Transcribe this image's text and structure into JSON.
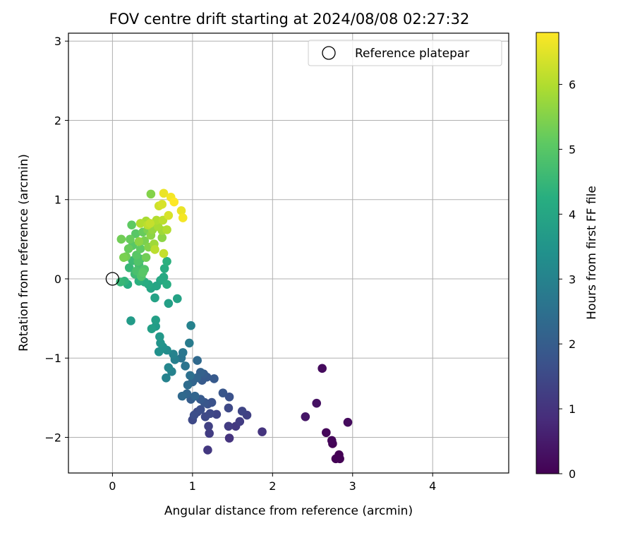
{
  "chart_data": {
    "type": "scatter",
    "title": "FOV centre drift starting at 2024/08/08 02:27:32",
    "xlabel": "Angular distance from reference (arcmin)",
    "ylabel": "Rotation from reference (arcmin)",
    "xlim": [
      -0.55,
      4.95
    ],
    "ylim": [
      -2.45,
      3.1
    ],
    "xticks": [
      0,
      1,
      2,
      3,
      4
    ],
    "yticks": [
      -2,
      -1,
      0,
      1,
      2,
      3
    ],
    "grid": true,
    "legend": {
      "position": "top-right",
      "label": "Reference platepar"
    },
    "reference_point": {
      "x": 0,
      "y": 0
    },
    "colorbar": {
      "label": "Hours from first FF file",
      "range": [
        0,
        6.8
      ],
      "ticks": [
        0,
        1,
        2,
        3,
        4,
        5,
        6
      ],
      "colormap": "viridis",
      "colors": [
        "#440154",
        "#472d7b",
        "#3b528b",
        "#2c728e",
        "#21918c",
        "#28ae80",
        "#5ec962",
        "#addc30",
        "#fde725"
      ]
    },
    "points": [
      {
        "x": 2.62,
        "y": -1.13,
        "h": 0.2
      },
      {
        "x": 2.55,
        "y": -1.57,
        "h": 0.3
      },
      {
        "x": 2.41,
        "y": -1.74,
        "h": 0.4
      },
      {
        "x": 2.67,
        "y": -1.94,
        "h": 0.1
      },
      {
        "x": 2.94,
        "y": -1.81,
        "h": 0.2
      },
      {
        "x": 2.74,
        "y": -2.04,
        "h": 0.1
      },
      {
        "x": 2.75,
        "y": -2.08,
        "h": 0.05
      },
      {
        "x": 2.79,
        "y": -2.27,
        "h": 0.02
      },
      {
        "x": 2.83,
        "y": -2.22,
        "h": 0.0
      },
      {
        "x": 2.84,
        "y": -2.27,
        "h": 0.03
      },
      {
        "x": 1.87,
        "y": -1.93,
        "h": 1.0
      },
      {
        "x": 1.68,
        "y": -1.72,
        "h": 1.3
      },
      {
        "x": 1.62,
        "y": -1.67,
        "h": 1.4
      },
      {
        "x": 1.59,
        "y": -1.8,
        "h": 1.2
      },
      {
        "x": 1.54,
        "y": -1.86,
        "h": 1.1
      },
      {
        "x": 1.45,
        "y": -1.86,
        "h": 1.2
      },
      {
        "x": 1.46,
        "y": -2.01,
        "h": 1.0
      },
      {
        "x": 1.45,
        "y": -1.63,
        "h": 1.5
      },
      {
        "x": 1.46,
        "y": -1.49,
        "h": 1.7
      },
      {
        "x": 1.38,
        "y": -1.44,
        "h": 1.8
      },
      {
        "x": 1.27,
        "y": -1.26,
        "h": 1.9
      },
      {
        "x": 1.3,
        "y": -1.71,
        "h": 1.4
      },
      {
        "x": 1.24,
        "y": -1.56,
        "h": 1.7
      },
      {
        "x": 1.22,
        "y": -1.7,
        "h": 1.5
      },
      {
        "x": 1.2,
        "y": -1.86,
        "h": 1.3
      },
      {
        "x": 1.21,
        "y": -1.95,
        "h": 1.2
      },
      {
        "x": 1.19,
        "y": -2.16,
        "h": 1.1
      },
      {
        "x": 1.16,
        "y": -1.74,
        "h": 1.5
      },
      {
        "x": 1.1,
        "y": -1.65,
        "h": 1.6
      },
      {
        "x": 1.06,
        "y": -1.68,
        "h": 1.5
      },
      {
        "x": 1.02,
        "y": -1.72,
        "h": 1.6
      },
      {
        "x": 1.0,
        "y": -1.78,
        "h": 1.5
      },
      {
        "x": 0.98,
        "y": -1.52,
        "h": 2.0
      },
      {
        "x": 1.03,
        "y": -1.48,
        "h": 2.2
      },
      {
        "x": 1.1,
        "y": -1.52,
        "h": 1.9
      },
      {
        "x": 1.15,
        "y": -1.56,
        "h": 1.8
      },
      {
        "x": 1.19,
        "y": -1.58,
        "h": 1.7
      },
      {
        "x": 1.06,
        "y": -1.03,
        "h": 2.3
      },
      {
        "x": 1.1,
        "y": -1.18,
        "h": 2.1
      },
      {
        "x": 1.14,
        "y": -1.2,
        "h": 2.0
      },
      {
        "x": 1.18,
        "y": -1.24,
        "h": 1.9
      },
      {
        "x": 1.12,
        "y": -1.28,
        "h": 1.9
      },
      {
        "x": 1.05,
        "y": -1.25,
        "h": 2.2
      },
      {
        "x": 1.0,
        "y": -1.3,
        "h": 2.2
      },
      {
        "x": 0.94,
        "y": -1.34,
        "h": 2.4
      },
      {
        "x": 0.97,
        "y": -1.22,
        "h": 2.5
      },
      {
        "x": 0.91,
        "y": -1.1,
        "h": 2.6
      },
      {
        "x": 0.88,
        "y": -0.93,
        "h": 2.7
      },
      {
        "x": 0.86,
        "y": -1.0,
        "h": 2.6
      },
      {
        "x": 0.96,
        "y": -0.81,
        "h": 2.8
      },
      {
        "x": 0.98,
        "y": -0.59,
        "h": 3.0
      },
      {
        "x": 0.87,
        "y": -1.48,
        "h": 2.3
      },
      {
        "x": 0.93,
        "y": -1.45,
        "h": 2.2
      },
      {
        "x": 0.78,
        "y": -1.02,
        "h": 2.9
      },
      {
        "x": 0.76,
        "y": -0.95,
        "h": 3.0
      },
      {
        "x": 0.74,
        "y": -1.17,
        "h": 3.0
      },
      {
        "x": 0.7,
        "y": -1.12,
        "h": 3.1
      },
      {
        "x": 0.68,
        "y": -0.9,
        "h": 3.3
      },
      {
        "x": 0.63,
        "y": -0.86,
        "h": 3.4
      },
      {
        "x": 0.67,
        "y": -1.25,
        "h": 3.0
      },
      {
        "x": 0.6,
        "y": -0.81,
        "h": 3.5
      },
      {
        "x": 0.58,
        "y": -0.92,
        "h": 3.4
      },
      {
        "x": 0.59,
        "y": -0.73,
        "h": 3.6
      },
      {
        "x": 0.54,
        "y": -0.6,
        "h": 3.7
      },
      {
        "x": 0.49,
        "y": -0.63,
        "h": 3.8
      },
      {
        "x": 0.54,
        "y": -0.52,
        "h": 3.8
      },
      {
        "x": 0.23,
        "y": -0.53,
        "h": 3.7
      },
      {
        "x": 0.7,
        "y": -0.31,
        "h": 3.8
      },
      {
        "x": 0.81,
        "y": -0.25,
        "h": 3.9
      },
      {
        "x": 0.53,
        "y": -0.24,
        "h": 3.9
      },
      {
        "x": 0.48,
        "y": -0.12,
        "h": 4.0
      },
      {
        "x": 0.45,
        "y": -0.07,
        "h": 4.1
      },
      {
        "x": 0.55,
        "y": -0.09,
        "h": 4.0
      },
      {
        "x": 0.6,
        "y": -0.02,
        "h": 4.0
      },
      {
        "x": 0.64,
        "y": 0.02,
        "h": 4.1
      },
      {
        "x": 0.68,
        "y": -0.07,
        "h": 4.2
      },
      {
        "x": 0.65,
        "y": 0.13,
        "h": 4.2
      },
      {
        "x": 0.68,
        "y": 0.22,
        "h": 4.3
      },
      {
        "x": 0.62,
        "y": -0.01,
        "h": 4.1
      },
      {
        "x": 0.4,
        "y": -0.04,
        "h": 4.2
      },
      {
        "x": 0.33,
        "y": -0.03,
        "h": 4.3
      },
      {
        "x": 0.19,
        "y": -0.07,
        "h": 4.2
      },
      {
        "x": 0.15,
        "y": -0.03,
        "h": 4.4
      },
      {
        "x": 0.1,
        "y": -0.04,
        "h": 4.5
      },
      {
        "x": 0.21,
        "y": 0.14,
        "h": 4.5
      },
      {
        "x": 0.25,
        "y": 0.23,
        "h": 4.6
      },
      {
        "x": 0.28,
        "y": 0.06,
        "h": 4.6
      },
      {
        "x": 0.3,
        "y": 0.1,
        "h": 4.8
      },
      {
        "x": 0.33,
        "y": 0.18,
        "h": 4.7
      },
      {
        "x": 0.35,
        "y": 0.25,
        "h": 4.8
      },
      {
        "x": 0.38,
        "y": 0.08,
        "h": 5.0
      },
      {
        "x": 0.4,
        "y": 0.12,
        "h": 4.9
      },
      {
        "x": 0.3,
        "y": 0.3,
        "h": 5.0
      },
      {
        "x": 0.35,
        "y": 0.38,
        "h": 5.1
      },
      {
        "x": 0.25,
        "y": 0.42,
        "h": 5.0
      },
      {
        "x": 0.2,
        "y": 0.38,
        "h": 5.2
      },
      {
        "x": 0.17,
        "y": 0.28,
        "h": 5.3
      },
      {
        "x": 0.14,
        "y": 0.27,
        "h": 5.4
      },
      {
        "x": 0.11,
        "y": 0.5,
        "h": 5.3
      },
      {
        "x": 0.22,
        "y": 0.5,
        "h": 5.2
      },
      {
        "x": 0.24,
        "y": 0.68,
        "h": 5.1
      },
      {
        "x": 0.29,
        "y": 0.57,
        "h": 5.0
      },
      {
        "x": 0.32,
        "y": 0.22,
        "h": 4.9
      },
      {
        "x": 0.36,
        "y": 0.03,
        "h": 4.9
      },
      {
        "x": 0.42,
        "y": 0.27,
        "h": 5.3
      },
      {
        "x": 0.45,
        "y": 0.4,
        "h": 5.5
      },
      {
        "x": 0.4,
        "y": 0.48,
        "h": 5.4
      },
      {
        "x": 0.38,
        "y": 0.59,
        "h": 5.2
      },
      {
        "x": 0.44,
        "y": 0.62,
        "h": 5.4
      },
      {
        "x": 0.48,
        "y": 0.55,
        "h": 5.6
      },
      {
        "x": 0.5,
        "y": 0.62,
        "h": 5.7
      },
      {
        "x": 0.52,
        "y": 0.44,
        "h": 5.8
      },
      {
        "x": 0.48,
        "y": 1.07,
        "h": 5.5
      },
      {
        "x": 0.42,
        "y": 0.73,
        "h": 5.9
      },
      {
        "x": 0.44,
        "y": 0.68,
        "h": 6.1
      },
      {
        "x": 0.47,
        "y": 0.7,
        "h": 6.2
      },
      {
        "x": 0.55,
        "y": 0.74,
        "h": 6.0
      },
      {
        "x": 0.57,
        "y": 0.66,
        "h": 5.9
      },
      {
        "x": 0.58,
        "y": 0.92,
        "h": 6.3
      },
      {
        "x": 0.62,
        "y": 0.94,
        "h": 6.4
      },
      {
        "x": 0.63,
        "y": 0.74,
        "h": 6.1
      },
      {
        "x": 0.62,
        "y": 0.61,
        "h": 5.8
      },
      {
        "x": 0.62,
        "y": 0.52,
        "h": 5.6
      },
      {
        "x": 0.64,
        "y": 1.08,
        "h": 6.6
      },
      {
        "x": 0.68,
        "y": 0.62,
        "h": 6.0
      },
      {
        "x": 0.7,
        "y": 0.8,
        "h": 6.4
      },
      {
        "x": 0.73,
        "y": 1.03,
        "h": 6.7
      },
      {
        "x": 0.77,
        "y": 0.97,
        "h": 6.8
      },
      {
        "x": 0.86,
        "y": 0.86,
        "h": 6.6
      },
      {
        "x": 0.88,
        "y": 0.77,
        "h": 6.7
      },
      {
        "x": 0.64,
        "y": 0.32,
        "h": 6.2
      },
      {
        "x": 0.35,
        "y": 0.7,
        "h": 6.0
      },
      {
        "x": 0.53,
        "y": 0.37,
        "h": 6.1
      },
      {
        "x": 0.33,
        "y": 0.47,
        "h": 5.6
      }
    ]
  }
}
